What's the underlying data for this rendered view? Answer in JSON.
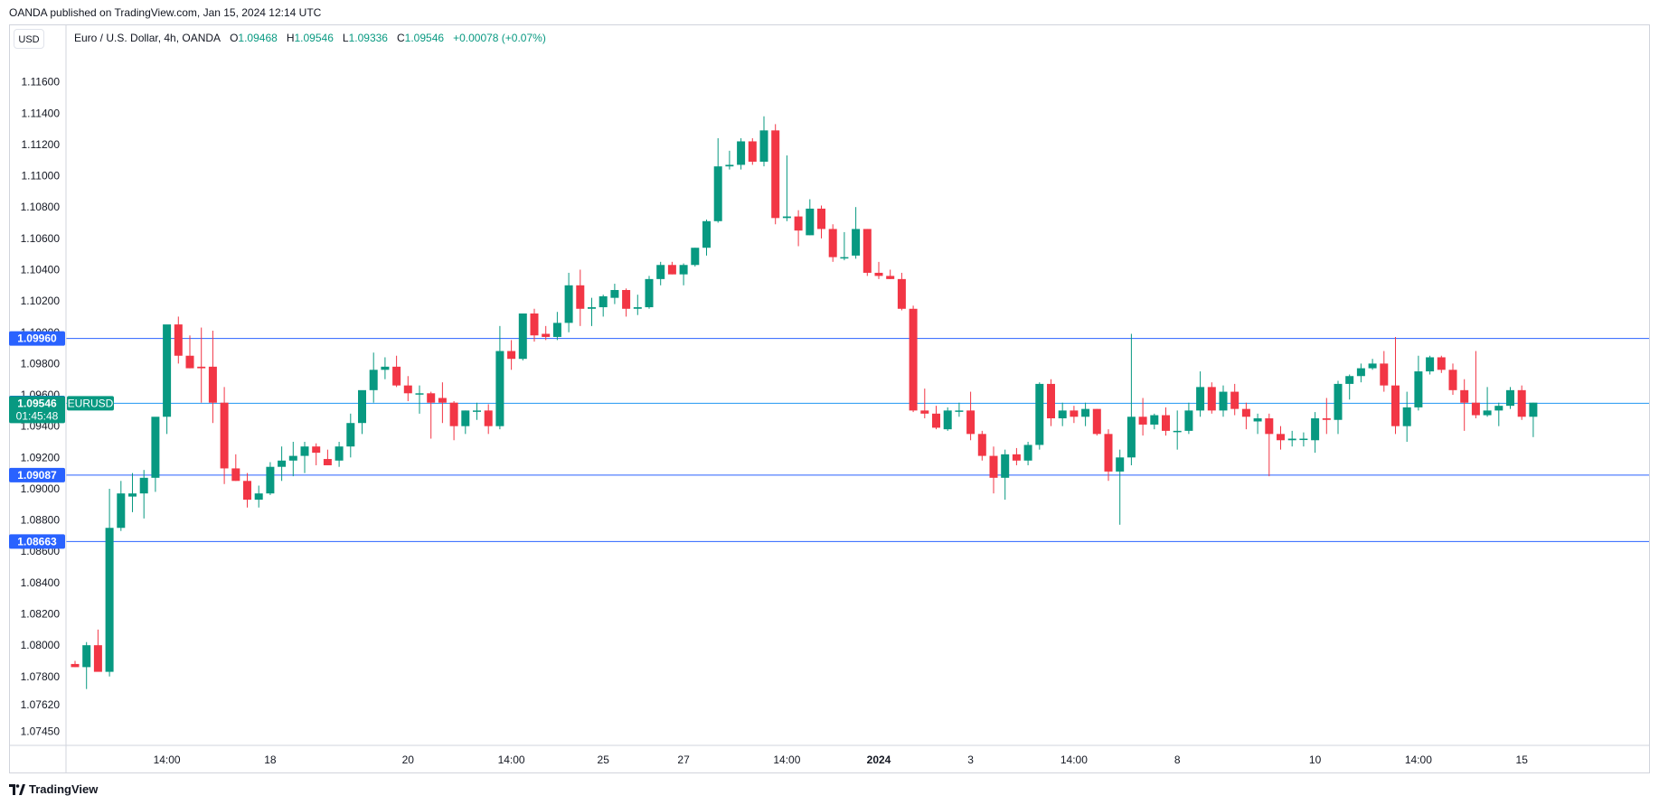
{
  "header": {
    "published": "OANDA published on TradingView.com, Jan 15, 2024 12:14 UTC",
    "currency_button": "USD"
  },
  "legend": {
    "symbol": "Euro / U.S. Dollar, 4h, OANDA",
    "o_label": "O",
    "o_value": "1.09468",
    "h_label": "H",
    "h_value": "1.09546",
    "l_label": "L",
    "l_value": "1.09336",
    "c_label": "C",
    "c_value": "1.09546",
    "change": "+0.00078 (+0.07%)"
  },
  "footer": {
    "brand": "TradingView"
  },
  "colors": {
    "up": "#089981",
    "down": "#f23645",
    "hline": "#2962ff",
    "priceline": "#2196f3"
  },
  "chart_data": {
    "type": "candlestick",
    "symbol": "EURUSD",
    "timeframe": "4h",
    "ylim": [
      1.0736,
      1.118
    ],
    "y_ticks": [
      "1.11600",
      "1.11400",
      "1.11200",
      "1.11000",
      "1.10800",
      "1.10600",
      "1.10400",
      "1.10200",
      "1.10000",
      "1.09800",
      "1.09600",
      "1.09400",
      "1.09200",
      "1.09000",
      "1.08800",
      "1.08600",
      "1.08400",
      "1.08200",
      "1.08000",
      "1.07800",
      "1.07620",
      "1.07450"
    ],
    "x_ticks": [
      {
        "label": "14:00",
        "bar": 8
      },
      {
        "label": "18",
        "bar": 17
      },
      {
        "label": "20",
        "bar": 29
      },
      {
        "label": "14:00",
        "bar": 38
      },
      {
        "label": "25",
        "bar": 46
      },
      {
        "label": "27",
        "bar": 53
      },
      {
        "label": "14:00",
        "bar": 62
      },
      {
        "label": "2024",
        "bar": 70,
        "bold": true
      },
      {
        "label": "3",
        "bar": 78
      },
      {
        "label": "14:00",
        "bar": 87
      },
      {
        "label": "8",
        "bar": 96
      },
      {
        "label": "10",
        "bar": 108
      },
      {
        "label": "14:00",
        "bar": 117
      },
      {
        "label": "15",
        "bar": 126
      }
    ],
    "horizontal_levels": [
      {
        "price": 1.0996,
        "label": "1.09960"
      },
      {
        "price": 1.09087,
        "label": "1.09087"
      },
      {
        "price": 1.08663,
        "label": "1.08663"
      }
    ],
    "last_price": {
      "price": 1.09546,
      "label": "1.09546",
      "countdown": "01:45:48",
      "symbol_tag": "EURUSD"
    },
    "high_marker": {
      "price": 1.09548,
      "label": "1.09548"
    },
    "candles": [
      [
        1.0788,
        1.079,
        1.0786,
        1.0786
      ],
      [
        1.0786,
        1.0802,
        1.0772,
        1.08
      ],
      [
        1.08,
        1.081,
        1.0784,
        1.0783
      ],
      [
        1.0783,
        1.09,
        1.078,
        1.0875
      ],
      [
        1.0875,
        1.0905,
        1.0873,
        1.0897
      ],
      [
        1.0895,
        1.091,
        1.0885,
        1.0897
      ],
      [
        1.0897,
        1.0912,
        1.0881,
        1.0907
      ],
      [
        1.0907,
        1.0945,
        1.0898,
        1.0946
      ],
      [
        1.0946,
        1.1003,
        1.0935,
        1.1005
      ],
      [
        1.1005,
        1.101,
        1.098,
        1.0985
      ],
      [
        1.0985,
        1.0998,
        1.0977,
        1.0977
      ],
      [
        1.0978,
        1.1003,
        1.0955,
        1.0977
      ],
      [
        1.0978,
        1.1001,
        1.0942,
        1.0955
      ],
      [
        1.0955,
        1.0965,
        1.0903,
        1.0913
      ],
      [
        1.0913,
        1.0922,
        1.0905,
        1.0905
      ],
      [
        1.0905,
        1.091,
        1.0888,
        1.0893
      ],
      [
        1.0893,
        1.0902,
        1.0888,
        1.0897
      ],
      [
        1.0897,
        1.0917,
        1.0896,
        1.0914
      ],
      [
        1.0914,
        1.0927,
        1.0905,
        1.0918
      ],
      [
        1.0918,
        1.093,
        1.0908,
        1.0921
      ],
      [
        1.0921,
        1.093,
        1.091,
        1.0927
      ],
      [
        1.0927,
        1.0929,
        1.0915,
        1.0923
      ],
      [
        1.0919,
        1.0925,
        1.0915,
        1.0915
      ],
      [
        1.0918,
        1.093,
        1.0914,
        1.0927
      ],
      [
        1.0927,
        1.0948,
        1.092,
        1.0942
      ],
      [
        1.0942,
        1.096,
        1.0935,
        1.0963
      ],
      [
        1.0963,
        1.0987,
        1.0955,
        1.0976
      ],
      [
        1.0976,
        1.0984,
        1.097,
        1.0978
      ],
      [
        1.0978,
        1.0985,
        1.0965,
        1.0966
      ],
      [
        1.0966,
        1.0972,
        1.0956,
        1.0961
      ],
      [
        1.0961,
        1.0966,
        1.0948,
        1.0961
      ],
      [
        1.0961,
        1.0962,
        1.0932,
        1.0955
      ],
      [
        1.0958,
        1.0968,
        1.0942,
        1.0955
      ],
      [
        1.0955,
        1.0956,
        1.0931,
        1.094
      ],
      [
        1.094,
        1.095,
        1.0935,
        1.095
      ],
      [
        1.095,
        1.0955,
        1.0944,
        1.095
      ],
      [
        1.095,
        1.0954,
        1.0935,
        1.094
      ],
      [
        1.094,
        1.1004,
        1.0938,
        1.0988
      ],
      [
        1.0988,
        1.0995,
        1.0976,
        1.0983
      ],
      [
        1.0983,
        1.1012,
        1.0982,
        1.1012
      ],
      [
        1.1012,
        1.1015,
        1.0994,
        1.0998
      ],
      [
        1.0999,
        1.1004,
        1.0995,
        1.0997
      ],
      [
        1.0997,
        1.1013,
        1.0995,
        1.1006
      ],
      [
        1.1006,
        1.1038,
        1.1,
        1.103
      ],
      [
        1.103,
        1.104,
        1.1004,
        1.1015
      ],
      [
        1.1015,
        1.1022,
        1.1004,
        1.1016
      ],
      [
        1.1016,
        1.1024,
        1.101,
        1.1023
      ],
      [
        1.1022,
        1.1031,
        1.1018,
        1.1027
      ],
      [
        1.1027,
        1.1028,
        1.101,
        1.1015
      ],
      [
        1.1015,
        1.1024,
        1.1011,
        1.1016
      ],
      [
        1.1016,
        1.1036,
        1.1015,
        1.1034
      ],
      [
        1.1034,
        1.1045,
        1.103,
        1.1043
      ],
      [
        1.1043,
        1.1045,
        1.1037,
        1.1037
      ],
      [
        1.1037,
        1.1044,
        1.103,
        1.1043
      ],
      [
        1.1043,
        1.1054,
        1.1042,
        1.1054
      ],
      [
        1.1054,
        1.1072,
        1.1049,
        1.1071
      ],
      [
        1.1071,
        1.1124,
        1.107,
        1.1106
      ],
      [
        1.1106,
        1.1116,
        1.1104,
        1.1107
      ],
      [
        1.1107,
        1.1124,
        1.1104,
        1.1122
      ],
      [
        1.1122,
        1.1124,
        1.1107,
        1.1109
      ],
      [
        1.1109,
        1.1138,
        1.1106,
        1.1129
      ],
      [
        1.1129,
        1.1133,
        1.1069,
        1.1073
      ],
      [
        1.1073,
        1.1113,
        1.1071,
        1.1074
      ],
      [
        1.1074,
        1.1078,
        1.1055,
        1.1065
      ],
      [
        1.1062,
        1.1085,
        1.1062,
        1.1079
      ],
      [
        1.1079,
        1.1081,
        1.106,
        1.1066
      ],
      [
        1.1066,
        1.1069,
        1.1045,
        1.1048
      ],
      [
        1.1048,
        1.1064,
        1.1046,
        1.1048
      ],
      [
        1.1049,
        1.108,
        1.1047,
        1.1066
      ],
      [
        1.1066,
        1.1066,
        1.1036,
        1.1038
      ],
      [
        1.1038,
        1.1045,
        1.1034,
        1.1036
      ],
      [
        1.1036,
        1.104,
        1.1034,
        1.1034
      ],
      [
        1.1034,
        1.1038,
        1.1014,
        1.1015
      ],
      [
        1.1015,
        1.1017,
        1.0949,
        1.095
      ],
      [
        1.095,
        1.0964,
        1.0945,
        1.0948
      ],
      [
        1.0948,
        1.0953,
        1.0938,
        1.0939
      ],
      [
        1.0938,
        1.0952,
        1.0937,
        1.095
      ],
      [
        1.095,
        1.0955,
        1.0946,
        1.095
      ],
      [
        1.095,
        1.0962,
        1.0931,
        1.0935
      ],
      [
        1.0935,
        1.0937,
        1.0918,
        1.0921
      ],
      [
        1.0921,
        1.0927,
        1.0897,
        1.0907
      ],
      [
        1.0907,
        1.0925,
        1.0893,
        1.0922
      ],
      [
        1.0922,
        1.0926,
        1.0915,
        1.0918
      ],
      [
        1.0918,
        1.093,
        1.0915,
        1.0928
      ],
      [
        1.0928,
        1.0968,
        1.0925,
        1.0967
      ],
      [
        1.0967,
        1.097,
        1.094,
        1.0945
      ],
      [
        1.0945,
        1.0955,
        1.094,
        1.095
      ],
      [
        1.095,
        1.0953,
        1.0942,
        1.0946
      ],
      [
        1.0946,
        1.0955,
        1.094,
        1.0951
      ],
      [
        1.0951,
        1.0951,
        1.0934,
        1.0935
      ],
      [
        1.0935,
        1.0938,
        1.0905,
        1.0911
      ],
      [
        1.0911,
        1.0925,
        1.0877,
        1.092
      ],
      [
        1.092,
        1.0999,
        1.0915,
        1.0946
      ],
      [
        1.0946,
        1.0958,
        1.0934,
        1.0941
      ],
      [
        1.0941,
        1.0948,
        1.0938,
        1.0947
      ],
      [
        1.0947,
        1.0952,
        1.0934,
        1.0937
      ],
      [
        1.0937,
        1.095,
        1.0925,
        1.0937
      ],
      [
        1.0937,
        1.0955,
        1.0935,
        1.095
      ],
      [
        1.095,
        1.0975,
        1.0946,
        1.0965
      ],
      [
        1.0965,
        1.0968,
        1.0948,
        1.095
      ],
      [
        1.095,
        1.0966,
        1.0946,
        1.0962
      ],
      [
        1.0962,
        1.0967,
        1.0947,
        1.0951
      ],
      [
        1.0951,
        1.0955,
        1.0938,
        1.0946
      ],
      [
        1.0943,
        1.0948,
        1.0935,
        1.0945
      ],
      [
        1.0945,
        1.0948,
        1.0908,
        1.0935
      ],
      [
        1.0935,
        1.094,
        1.0925,
        1.0931
      ],
      [
        1.0931,
        1.0937,
        1.0927,
        1.0932
      ],
      [
        1.0932,
        1.0936,
        1.0927,
        1.0932
      ],
      [
        1.0931,
        1.0949,
        1.0923,
        1.0945
      ],
      [
        1.0945,
        1.0958,
        1.0935,
        1.0944
      ],
      [
        1.0944,
        1.0969,
        1.0935,
        1.0967
      ],
      [
        1.0967,
        1.0973,
        1.0957,
        1.0972
      ],
      [
        1.0972,
        1.098,
        1.0968,
        1.0977
      ],
      [
        1.0977,
        1.0983,
        1.0976,
        1.098
      ],
      [
        1.098,
        1.0988,
        1.0962,
        1.0966
      ],
      [
        1.0966,
        1.0997,
        1.0935,
        1.094
      ],
      [
        1.094,
        1.0962,
        1.093,
        1.0952
      ],
      [
        1.0952,
        1.0985,
        1.095,
        1.0975
      ],
      [
        1.0975,
        1.0985,
        1.0973,
        1.0984
      ],
      [
        1.0984,
        1.0985,
        1.0974,
        1.0976
      ],
      [
        1.0976,
        1.098,
        1.096,
        1.0963
      ],
      [
        1.0963,
        1.097,
        1.0937,
        1.0955
      ],
      [
        1.0955,
        1.0988,
        1.0945,
        1.0947
      ],
      [
        1.0947,
        1.0965,
        1.0946,
        1.095
      ],
      [
        1.095,
        1.0955,
        1.094,
        1.0953
      ],
      [
        1.0953,
        1.0965,
        1.0951,
        1.0963
      ],
      [
        1.0963,
        1.0966,
        1.0944,
        1.0946
      ],
      [
        1.0946,
        1.0955,
        1.0933,
        1.0955
      ]
    ]
  }
}
